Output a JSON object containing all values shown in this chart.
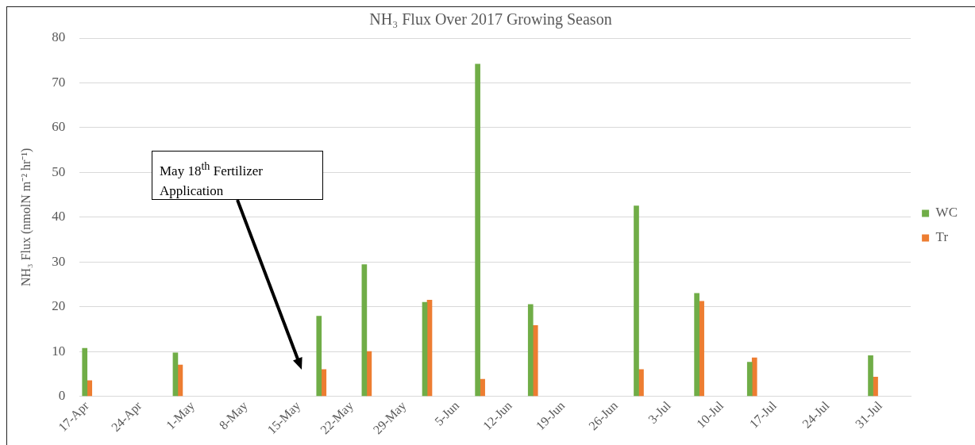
{
  "chart_data": {
    "type": "bar",
    "title": "NH₃ Flux Over 2017 Growing Season",
    "ylabel": "NH₃ Flux (nmolN m⁻² hr⁻¹)",
    "x": [
      "2017-04-17",
      "2017-04-29",
      "2017-05-18",
      "2017-05-24",
      "2017-06-01",
      "2017-06-08",
      "2017-06-15",
      "2017-06-29",
      "2017-07-07",
      "2017-07-14",
      "2017-07-30"
    ],
    "series": [
      {
        "name": "WC",
        "color": "#70ad47",
        "values": [
          10.7,
          9.7,
          17.9,
          29.4,
          21,
          74.2,
          20.5,
          42.5,
          23,
          7.6,
          9.1
        ]
      },
      {
        "name": "Tr",
        "color": "#ed7d31",
        "values": [
          3.5,
          7,
          6,
          10,
          21.5,
          3.8,
          15.8,
          6,
          21.2,
          8.6,
          4.3
        ]
      }
    ],
    "xlim": [
      "2017-04-16",
      "2017-08-04"
    ],
    "xticks": [
      {
        "value": "2017-04-17",
        "label": "17-Apr"
      },
      {
        "value": "2017-04-24",
        "label": "24-Apr"
      },
      {
        "value": "2017-05-01",
        "label": "1-May"
      },
      {
        "value": "2017-05-08",
        "label": "8-May"
      },
      {
        "value": "2017-05-15",
        "label": "15-May"
      },
      {
        "value": "2017-05-22",
        "label": "22-May"
      },
      {
        "value": "2017-05-29",
        "label": "29-May"
      },
      {
        "value": "2017-06-05",
        "label": "5-Jun"
      },
      {
        "value": "2017-06-12",
        "label": "12-Jun"
      },
      {
        "value": "2017-06-19",
        "label": "19-Jun"
      },
      {
        "value": "2017-06-26",
        "label": "26-Jun"
      },
      {
        "value": "2017-07-03",
        "label": "3-Jul"
      },
      {
        "value": "2017-07-10",
        "label": "10-Jul"
      },
      {
        "value": "2017-07-17",
        "label": "17-Jul"
      },
      {
        "value": "2017-07-24",
        "label": "24-Jul"
      },
      {
        "value": "2017-07-31",
        "label": "31-Jul"
      }
    ],
    "ylim": [
      0,
      80
    ],
    "yticks": [
      0,
      10,
      20,
      30,
      40,
      50,
      60,
      70,
      80
    ],
    "grid": "y",
    "legend": "right",
    "annotations": [
      "May 18$^{th}$ Fertilizer Application"
    ]
  }
}
